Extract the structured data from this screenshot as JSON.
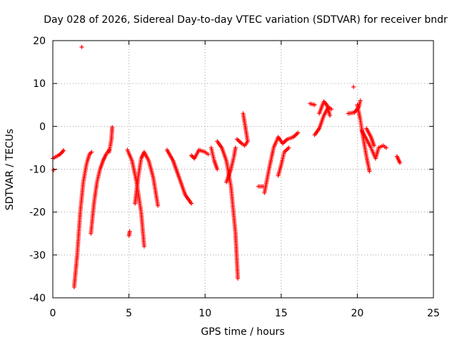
{
  "chart_data": {
    "type": "scatter",
    "title": "Day 028 of 2026, Sidereal Day-to-day VTEC variation (SDTVAR) for receiver bndr",
    "xlabel": "GPS time / hours",
    "ylabel": "SDTVAR / TECUs",
    "xlim": [
      0,
      25
    ],
    "ylim": [
      -40,
      20
    ],
    "xticks": [
      0,
      5,
      10,
      15,
      20,
      25
    ],
    "yticks": [
      -40,
      -30,
      -20,
      -10,
      0,
      10,
      20
    ],
    "grid": true,
    "marker": "+",
    "color": "#ff0000",
    "series": [
      {
        "name": "SDTVAR",
        "segments": [
          [
            [
              0.0,
              -7.5
            ],
            [
              0.2,
              -7.1
            ],
            [
              0.4,
              -6.7
            ],
            [
              0.6,
              -6.1
            ],
            [
              0.7,
              -5.6
            ]
          ],
          [
            [
              0.05,
              -10.2
            ]
          ],
          [
            [
              1.4,
              -37.5
            ],
            [
              1.6,
              -30
            ],
            [
              1.8,
              -20
            ],
            [
              2.0,
              -13
            ],
            [
              2.2,
              -9
            ],
            [
              2.4,
              -6.5
            ],
            [
              2.55,
              -6
            ]
          ],
          [
            [
              1.9,
              18.5
            ]
          ],
          [
            [
              2.5,
              -25
            ],
            [
              2.7,
              -18
            ],
            [
              2.9,
              -13
            ],
            [
              3.1,
              -10
            ],
            [
              3.3,
              -8
            ],
            [
              3.5,
              -6.5
            ],
            [
              3.7,
              -5.5
            ]
          ],
          [
            [
              3.9,
              -0.2
            ],
            [
              3.85,
              -3
            ],
            [
              3.7,
              -6
            ]
          ],
          [
            [
              4.9,
              -5.5
            ],
            [
              5.2,
              -8
            ],
            [
              5.5,
              -13
            ],
            [
              5.8,
              -20
            ],
            [
              6.0,
              -28
            ]
          ],
          [
            [
              5.0,
              -25.5
            ],
            [
              5.05,
              -24.5
            ]
          ],
          [
            [
              5.4,
              -18
            ],
            [
              5.6,
              -12
            ],
            [
              5.8,
              -7.5
            ],
            [
              6.0,
              -6
            ],
            [
              6.3,
              -8
            ],
            [
              6.6,
              -12
            ],
            [
              6.9,
              -18.5
            ]
          ],
          [
            [
              7.5,
              -5.5
            ],
            [
              7.9,
              -8
            ],
            [
              8.3,
              -12
            ],
            [
              8.7,
              -16
            ],
            [
              9.1,
              -18
            ]
          ],
          [
            [
              9.1,
              -6.8
            ],
            [
              9.3,
              -7.5
            ],
            [
              9.6,
              -5.5
            ],
            [
              10.0,
              -6
            ],
            [
              10.2,
              -6.5
            ]
          ],
          [
            [
              10.4,
              -5
            ],
            [
              10.6,
              -8
            ],
            [
              10.8,
              -10
            ]
          ],
          [
            [
              10.8,
              -3.5
            ],
            [
              11.1,
              -5
            ],
            [
              11.4,
              -8
            ],
            [
              11.7,
              -14
            ],
            [
              12.0,
              -25
            ],
            [
              12.15,
              -35.5
            ]
          ],
          [
            [
              11.4,
              -13
            ],
            [
              11.7,
              -10
            ],
            [
              11.9,
              -7
            ],
            [
              12.0,
              -5
            ]
          ],
          [
            [
              12.1,
              -3
            ],
            [
              12.4,
              -4
            ],
            [
              12.6,
              -4.5
            ],
            [
              12.8,
              -3.5
            ],
            [
              12.5,
              3
            ]
          ],
          [
            [
              13.5,
              -14
            ],
            [
              13.8,
              -14
            ]
          ],
          [
            [
              13.9,
              -15.5
            ],
            [
              14.2,
              -10
            ],
            [
              14.5,
              -5
            ],
            [
              14.8,
              -2.5
            ],
            [
              15.1,
              -4
            ],
            [
              15.4,
              -3
            ],
            [
              15.8,
              -2.5
            ],
            [
              16.1,
              -1.5
            ]
          ],
          [
            [
              14.8,
              -11.5
            ],
            [
              15.0,
              -9
            ],
            [
              15.2,
              -6
            ],
            [
              15.5,
              -5
            ]
          ],
          [
            [
              16.9,
              5.3
            ],
            [
              17.2,
              5
            ]
          ],
          [
            [
              17.2,
              -2
            ],
            [
              17.5,
              -0.5
            ],
            [
              17.8,
              2.5
            ],
            [
              18.1,
              4.5
            ],
            [
              18.3,
              4
            ]
          ],
          [
            [
              17.5,
              3
            ],
            [
              17.8,
              5.8
            ],
            [
              18.0,
              5
            ],
            [
              18.2,
              2.5
            ]
          ],
          [
            [
              19.4,
              3
            ],
            [
              19.8,
              3.2
            ],
            [
              20.1,
              4.5
            ],
            [
              20.2,
              6
            ]
          ],
          [
            [
              19.75,
              9.2
            ]
          ],
          [
            [
              20.0,
              5
            ],
            [
              20.2,
              1.5
            ],
            [
              20.4,
              -3
            ],
            [
              20.6,
              -7
            ],
            [
              20.8,
              -10.5
            ]
          ],
          [
            [
              20.3,
              -1
            ],
            [
              20.6,
              -3
            ],
            [
              20.9,
              -5
            ],
            [
              21.2,
              -7.5
            ],
            [
              21.4,
              -5
            ],
            [
              21.7,
              -4.5
            ],
            [
              21.9,
              -5
            ]
          ],
          [
            [
              20.6,
              -0.5
            ],
            [
              20.9,
              -2.5
            ],
            [
              21.1,
              -4.5
            ]
          ],
          [
            [
              22.6,
              -7
            ],
            [
              22.8,
              -8.5
            ]
          ]
        ]
      }
    ]
  }
}
